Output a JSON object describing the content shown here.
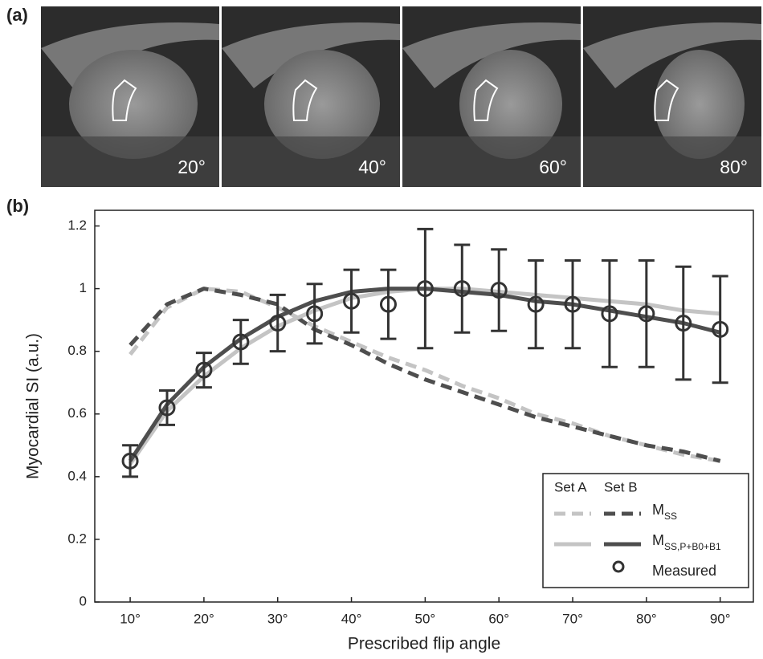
{
  "panel_a": {
    "label": "(a)",
    "images": [
      {
        "label": "20°"
      },
      {
        "label": "40°"
      },
      {
        "label": "60°"
      },
      {
        "label": "80°"
      }
    ]
  },
  "chart_data": {
    "type": "line",
    "panel_label": "(b)",
    "x_label": "Prescribed flip angle",
    "y_label": "Myocardial SI (a.u.)",
    "x": [
      10,
      15,
      20,
      25,
      30,
      35,
      40,
      45,
      50,
      55,
      60,
      65,
      70,
      75,
      80,
      85,
      90
    ],
    "xlim": [
      5.2,
      94.5
    ],
    "xticks": [
      {
        "value": 10,
        "label": "10°"
      },
      {
        "value": 20,
        "label": "20°"
      },
      {
        "value": 30,
        "label": "30°"
      },
      {
        "value": 40,
        "label": "40°"
      },
      {
        "value": 50,
        "label": "50°"
      },
      {
        "value": 60,
        "label": "60°"
      },
      {
        "value": 70,
        "label": "70°"
      },
      {
        "value": 80,
        "label": "80°"
      },
      {
        "value": 90,
        "label": "90°"
      }
    ],
    "ylim": [
      0,
      1.25
    ],
    "yticks": [
      0,
      0.2,
      0.4,
      0.6,
      0.8,
      1,
      1.2
    ],
    "legend_position": "lower right",
    "models": [
      {
        "symbol": "M",
        "subscript": "SS",
        "dashed": true,
        "sets": [
          {
            "name": "Set A",
            "color": "#c4c4c4",
            "values": [
              0.79,
              0.94,
              1.0,
              0.99,
              0.94,
              0.88,
              0.83,
              0.78,
              0.74,
              0.69,
              0.65,
              0.6,
              0.57,
              0.53,
              0.5,
              0.47,
              0.45
            ]
          },
          {
            "name": "Set B",
            "color": "#4e4e4e",
            "values": [
              0.82,
              0.95,
              1.0,
              0.98,
              0.95,
              0.87,
              0.82,
              0.76,
              0.71,
              0.67,
              0.63,
              0.59,
              0.56,
              0.53,
              0.5,
              0.48,
              0.45
            ]
          }
        ]
      },
      {
        "symbol": "M",
        "subscript": "SS,P+B0+B1",
        "dashed": false,
        "sets": [
          {
            "name": "Set A",
            "color": "#c4c4c4",
            "values": [
              0.44,
              0.61,
              0.72,
              0.81,
              0.88,
              0.93,
              0.97,
              0.99,
              1.0,
              1.0,
              0.99,
              0.98,
              0.97,
              0.96,
              0.95,
              0.93,
              0.92
            ]
          },
          {
            "name": "Set B",
            "color": "#4e4e4e",
            "values": [
              0.45,
              0.63,
              0.75,
              0.84,
              0.91,
              0.96,
              0.99,
              1.0,
              1.0,
              0.99,
              0.98,
              0.96,
              0.95,
              0.93,
              0.91,
              0.89,
              0.86
            ]
          }
        ]
      }
    ],
    "measured": {
      "name": "Measured",
      "color": "#333333",
      "values": [
        0.45,
        0.62,
        0.74,
        0.83,
        0.89,
        0.92,
        0.96,
        0.95,
        1.0,
        1.0,
        0.995,
        0.95,
        0.95,
        0.92,
        0.92,
        0.89,
        0.87
      ],
      "errors": [
        0.05,
        0.055,
        0.055,
        0.07,
        0.09,
        0.095,
        0.1,
        0.11,
        0.19,
        0.14,
        0.13,
        0.14,
        0.14,
        0.17,
        0.17,
        0.18,
        0.17
      ]
    }
  }
}
